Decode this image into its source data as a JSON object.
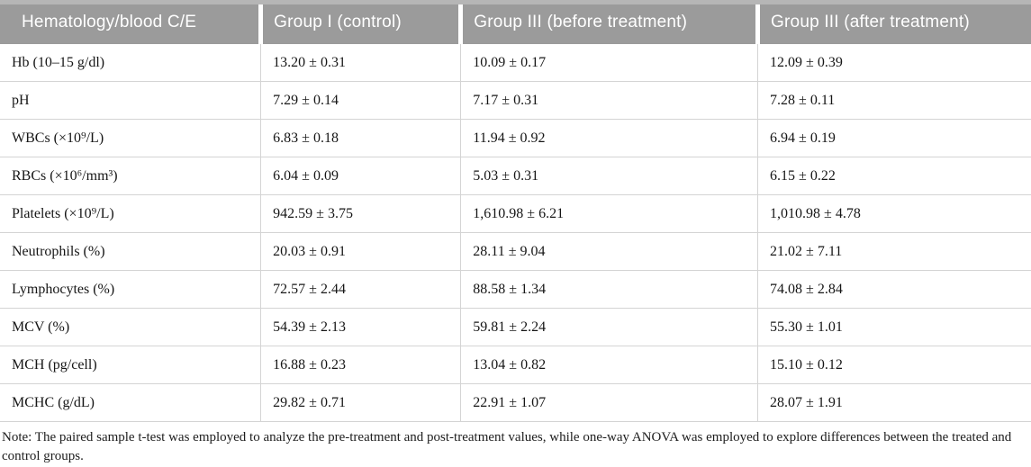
{
  "table": {
    "columns": [
      "Hematology/blood C/E",
      "Group I (control)",
      "Group III (before treatment)",
      "Group III (after treatment)"
    ],
    "rows": [
      [
        "Hb (10–15 g/dl)",
        "13.20 ± 0.31",
        "10.09 ± 0.17",
        "12.09 ± 0.39"
      ],
      [
        "pH",
        "7.29 ± 0.14",
        "7.17 ± 0.31",
        "7.28 ± 0.11"
      ],
      [
        "WBCs (×10⁹/L)",
        "6.83 ± 0.18",
        "11.94 ± 0.92",
        "6.94 ± 0.19"
      ],
      [
        "RBCs (×10⁶/mm³)",
        "6.04 ± 0.09",
        "5.03 ± 0.31",
        "6.15 ± 0.22"
      ],
      [
        "Platelets (×10⁹/L)",
        "942.59 ± 3.75",
        "1,610.98 ± 6.21",
        "1,010.98 ± 4.78"
      ],
      [
        "Neutrophils (%)",
        "20.03 ± 0.91",
        "28.11 ± 9.04",
        "21.02 ± 7.11"
      ],
      [
        "Lymphocytes (%)",
        "72.57 ± 2.44",
        "88.58 ± 1.34",
        "74.08 ± 2.84"
      ],
      [
        "MCV (%)",
        "54.39 ± 2.13",
        "59.81 ± 2.24",
        "55.30 ± 1.01"
      ],
      [
        "MCH (pg/cell)",
        "16.88 ± 0.23",
        "13.04 ± 0.82",
        "15.10 ± 0.12"
      ],
      [
        "MCHC (g/dL)",
        "29.82 ± 0.71",
        "22.91 ± 1.07",
        "28.07 ± 1.91"
      ]
    ]
  },
  "note": "Note: The paired sample t-test was employed to analyze the pre-treatment and post-treatment values, while one-way ANOVA was employed to explore differences between the treated and control groups.",
  "colors": {
    "header_bg": "#9b9b9b",
    "header_top_strip": "#b6b6b6",
    "header_text": "#ffffff",
    "row_border": "#d4d4d4",
    "body_text": "#161616"
  }
}
